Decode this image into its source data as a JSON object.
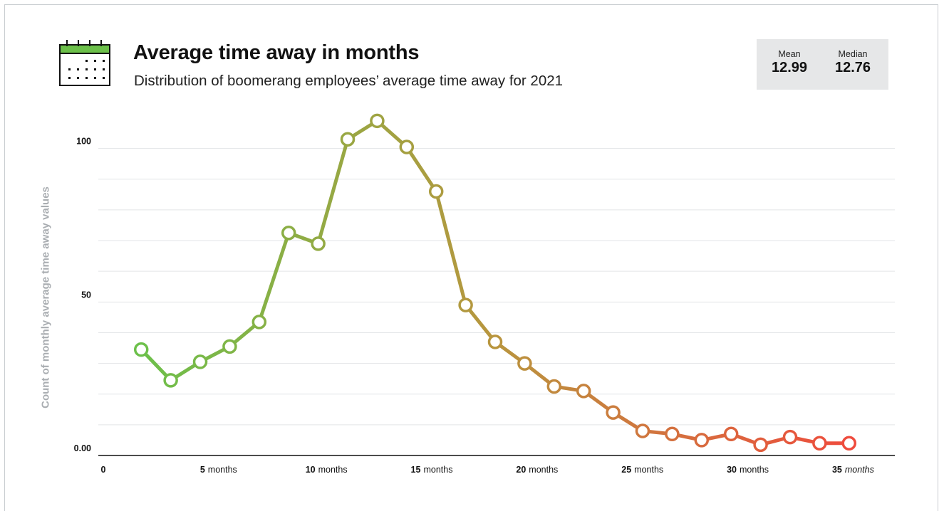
{
  "header": {
    "title": "Average time away in months",
    "subtitle": "Distribution of boomerang employees’ average time away for 2021"
  },
  "stats": {
    "mean_label": "Mean",
    "mean_value": "12.99",
    "median_label": "Median",
    "median_value": "12.76"
  },
  "icons": {
    "header_icon": "calendar-icon",
    "header_icon_accent": "#6cc04a"
  },
  "colors": {
    "gradient_start": "#6cc04a",
    "gradient_mid": "#b9953e",
    "gradient_end": "#ef4b3d",
    "grid": "#e3e5e7",
    "axis": "#111111",
    "marker_fill": "#ffffff"
  },
  "chart_data": {
    "type": "line",
    "ylabel": "Count of monthly average time away values",
    "xlabel": "",
    "ylim": [
      0,
      110
    ],
    "xlim": [
      0,
      36.8
    ],
    "grid": true,
    "y_ticks": [
      {
        "value": 0,
        "label": "0.00"
      },
      {
        "value": 50,
        "label": "50"
      },
      {
        "value": 100,
        "label": "100"
      }
    ],
    "y_grid_lines": [
      10,
      20,
      30,
      40,
      50,
      60,
      70,
      80,
      90,
      100
    ],
    "x_ticks": [
      {
        "value": 0,
        "number": "0",
        "unit": "",
        "italic_unit": false
      },
      {
        "value": 5,
        "number": "5",
        "unit": "months",
        "italic_unit": false
      },
      {
        "value": 10,
        "number": "10",
        "unit": "months",
        "italic_unit": false
      },
      {
        "value": 15,
        "number": "15",
        "unit": "months",
        "italic_unit": false
      },
      {
        "value": 20,
        "number": "20",
        "unit": "months",
        "italic_unit": false
      },
      {
        "value": 25,
        "number": "25",
        "unit": "months",
        "italic_unit": false
      },
      {
        "value": 30,
        "number": "30",
        "unit": "months",
        "italic_unit": false
      },
      {
        "value": 35,
        "number": "35",
        "unit": "months",
        "italic_unit": true
      }
    ],
    "series": [
      {
        "x": [
          1.8,
          3.2,
          4.6,
          6.0,
          7.4,
          8.8,
          10.2,
          11.6,
          13.0,
          14.4,
          15.8,
          17.2,
          18.6,
          20.0,
          21.4,
          22.8,
          24.2,
          25.6,
          27.0,
          28.4,
          29.8,
          31.2,
          32.6,
          34.0,
          35.4
        ],
        "values": [
          34.5,
          24.5,
          30.5,
          35.5,
          43.5,
          72.5,
          69,
          103,
          109,
          100.5,
          86,
          49,
          37,
          30,
          22.5,
          21,
          14,
          8,
          7,
          5,
          7,
          3.5,
          6,
          4,
          4
        ]
      }
    ]
  }
}
